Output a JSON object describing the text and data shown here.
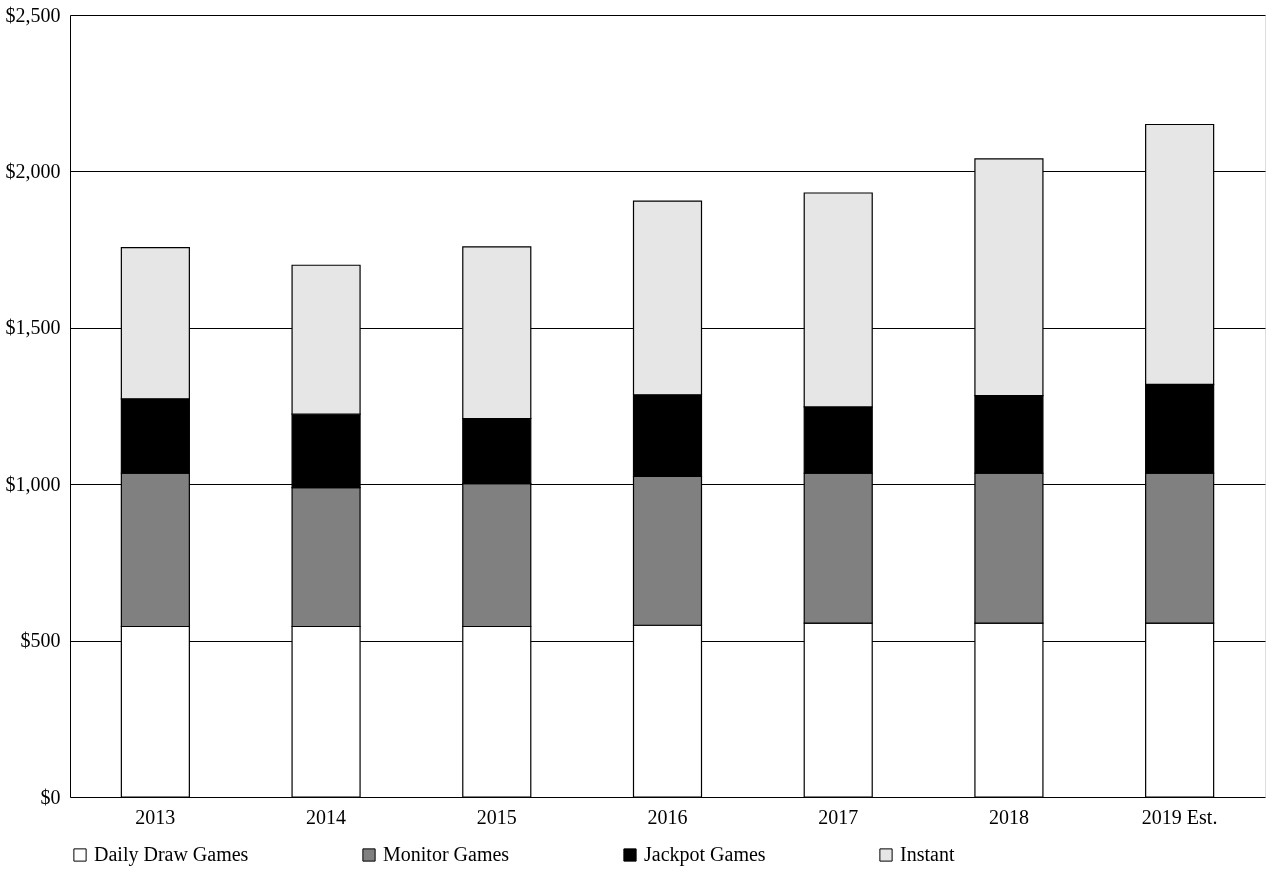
{
  "chart_data": {
    "type": "bar",
    "stacked": true,
    "categories": [
      "2013",
      "2014",
      "2015",
      "2016",
      "2017",
      "2018",
      "2019 Est."
    ],
    "series": [
      {
        "name": "Daily Draw Games",
        "color": "#ffffff",
        "values": [
          545,
          545,
          545,
          549,
          556,
          556,
          556
        ]
      },
      {
        "name": "Monitor Games",
        "color": "#808080",
        "values": [
          490,
          444,
          457,
          476,
          479,
          479,
          479
        ]
      },
      {
        "name": "Jackpot Games",
        "color": "#000000",
        "values": [
          238,
          235,
          208,
          261,
          212,
          248,
          284
        ]
      },
      {
        "name": "Instant",
        "color": "#e6e6e6",
        "values": [
          483,
          476,
          549,
          619,
          684,
          757,
          831
        ]
      }
    ],
    "ylim": [
      0,
      2500
    ],
    "yticks": [
      {
        "value": 0,
        "label": "$0"
      },
      {
        "value": 500,
        "label": "$500"
      },
      {
        "value": 1000,
        "label": "$1,000"
      },
      {
        "value": 1500,
        "label": "$1,500"
      },
      {
        "value": 2000,
        "label": "$2,000"
      },
      {
        "value": 2500,
        "label": "$2,500"
      }
    ],
    "grid": "y",
    "legend": "bottom"
  }
}
